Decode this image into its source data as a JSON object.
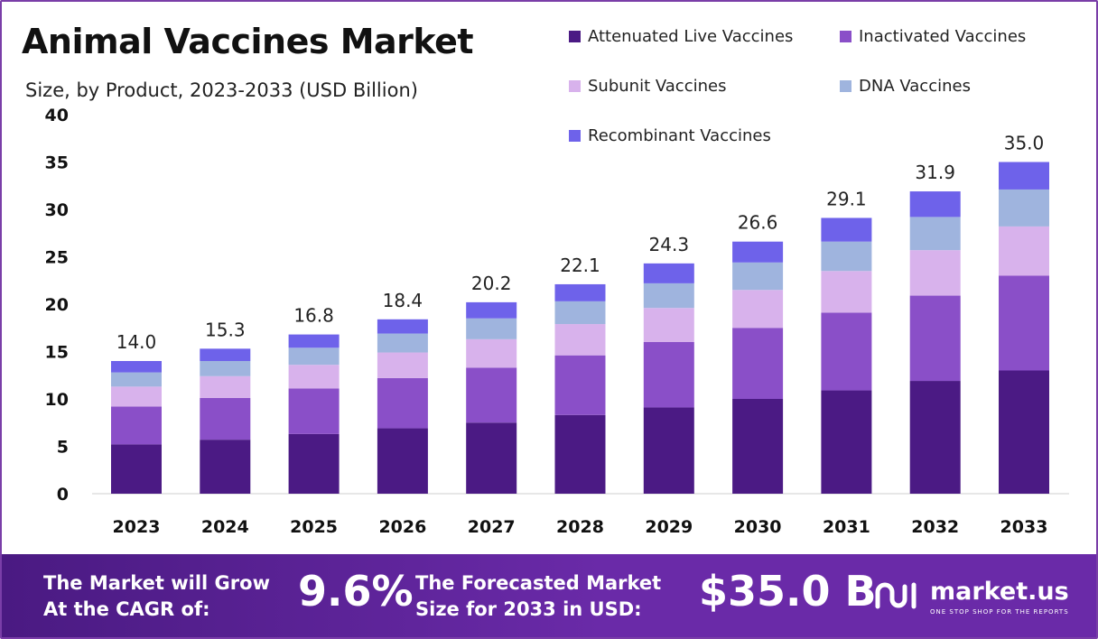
{
  "header": {
    "title": "Animal Vaccines Market",
    "subtitle": "Size, by Product, 2023-2033 (USD Billion)"
  },
  "chart_data": {
    "type": "bar",
    "stacked": true,
    "categories": [
      "2023",
      "2024",
      "2025",
      "2026",
      "2027",
      "2028",
      "2029",
      "2030",
      "2031",
      "2032",
      "2033"
    ],
    "series": [
      {
        "name": "Attenuated Live Vaccines",
        "color": "#4b1a84",
        "values": [
          5.2,
          5.7,
          6.3,
          6.9,
          7.5,
          8.3,
          9.1,
          10.0,
          10.9,
          11.9,
          13.0
        ]
      },
      {
        "name": "Inactivated Vaccines",
        "color": "#8a4fc8",
        "values": [
          4.0,
          4.4,
          4.8,
          5.3,
          5.8,
          6.3,
          6.9,
          7.5,
          8.2,
          9.0,
          10.0
        ]
      },
      {
        "name": "Subunit Vaccines",
        "color": "#d8b2ec",
        "values": [
          2.1,
          2.3,
          2.5,
          2.7,
          3.0,
          3.3,
          3.6,
          4.0,
          4.4,
          4.8,
          5.2
        ]
      },
      {
        "name": "DNA Vaccines",
        "color": "#9fb4de",
        "values": [
          1.5,
          1.6,
          1.8,
          2.0,
          2.2,
          2.4,
          2.6,
          2.9,
          3.1,
          3.5,
          3.9
        ]
      },
      {
        "name": "Recombinant Vaccines",
        "color": "#6e62ea",
        "values": [
          1.2,
          1.3,
          1.4,
          1.5,
          1.7,
          1.8,
          2.1,
          2.2,
          2.5,
          2.7,
          2.9
        ]
      }
    ],
    "totals": [
      "14.0",
      "15.3",
      "16.8",
      "18.4",
      "20.2",
      "22.1",
      "24.3",
      "26.6",
      "29.1",
      "31.9",
      "35.0"
    ],
    "ylim": [
      0,
      40
    ],
    "yticks": [
      "0",
      "5",
      "10",
      "15",
      "20",
      "25",
      "30",
      "35",
      "40"
    ],
    "grid": false,
    "legend_position": "top-right"
  },
  "footer": {
    "cagr_text_line1": "The Market will Grow",
    "cagr_text_line2": "At the CAGR of:",
    "cagr_value": "9.6%",
    "size_text_line1": "The Forecasted Market",
    "size_text_line2": "Size for 2033 in USD:",
    "size_value": "$35.0 B",
    "brand_name": "market.us",
    "brand_tagline": "ONE STOP SHOP FOR THE REPORTS"
  }
}
